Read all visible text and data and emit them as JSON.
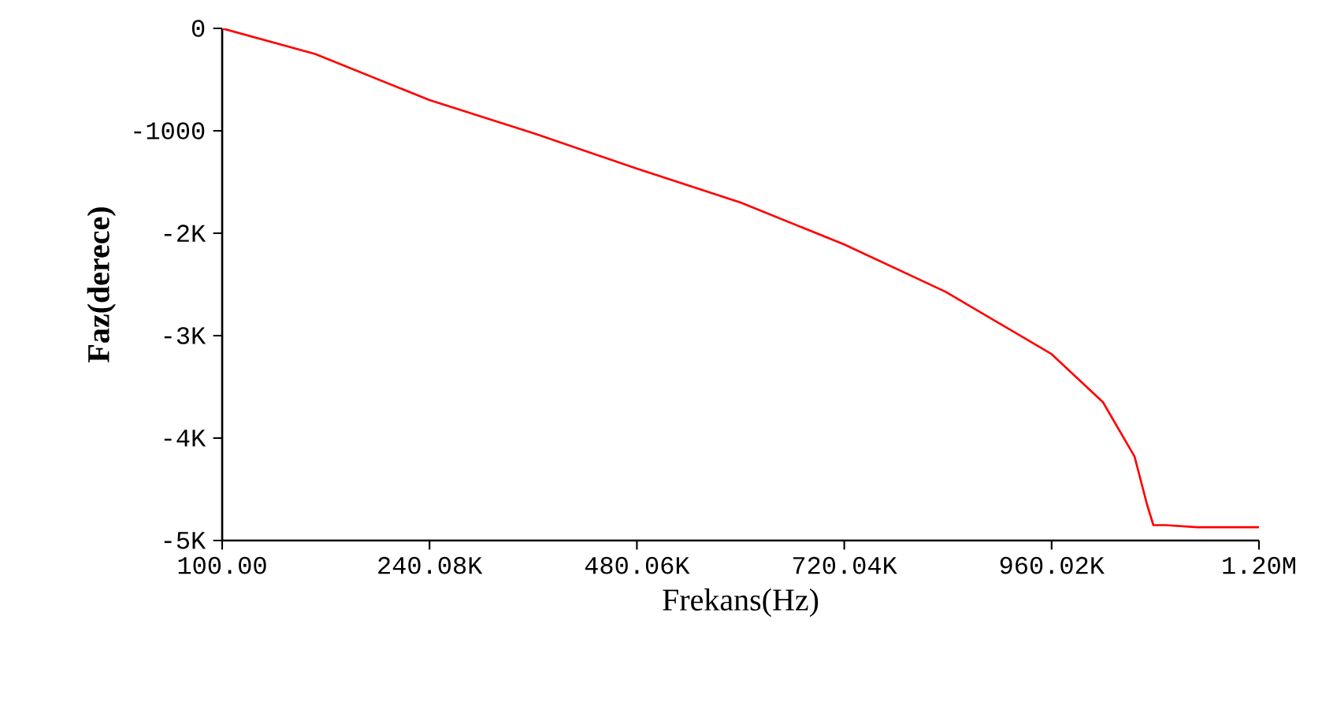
{
  "chart_data": {
    "type": "line",
    "xlabel": "Frekans(Hz)",
    "ylabel": "Faz(derece)",
    "x": [
      100,
      107700,
      240080,
      363000,
      480060,
      600000,
      720040,
      837000,
      960020,
      1019500,
      1056000,
      1070500,
      1077800,
      1092000,
      1128500,
      1200000
    ],
    "series": [
      {
        "color": "#ff0000",
        "values": [
          0,
          -250,
          -700,
          -1030,
          -1370,
          -1700,
          -2110,
          -2570,
          -3180,
          -3650,
          -4180,
          -4650,
          -4850,
          -4850,
          -4870,
          -4870
        ]
      }
    ],
    "xlim": [
      100,
      1200000
    ],
    "ylim": [
      -5000,
      0
    ],
    "xticks": [
      {
        "value": 100,
        "label": "100.00"
      },
      {
        "value": 240080,
        "label": "240.08K"
      },
      {
        "value": 480060,
        "label": "480.06K"
      },
      {
        "value": 720040,
        "label": "720.04K"
      },
      {
        "value": 960020,
        "label": "960.02K"
      },
      {
        "value": 1200000,
        "label": "1.20M"
      }
    ],
    "yticks": [
      {
        "value": -5000,
        "label": "-5K"
      },
      {
        "value": -4000,
        "label": "-4K"
      },
      {
        "value": -3000,
        "label": "-3K"
      },
      {
        "value": -2000,
        "label": "-2K"
      },
      {
        "value": -1000,
        "label": "-1000"
      },
      {
        "value": 0,
        "label": "0"
      }
    ]
  }
}
